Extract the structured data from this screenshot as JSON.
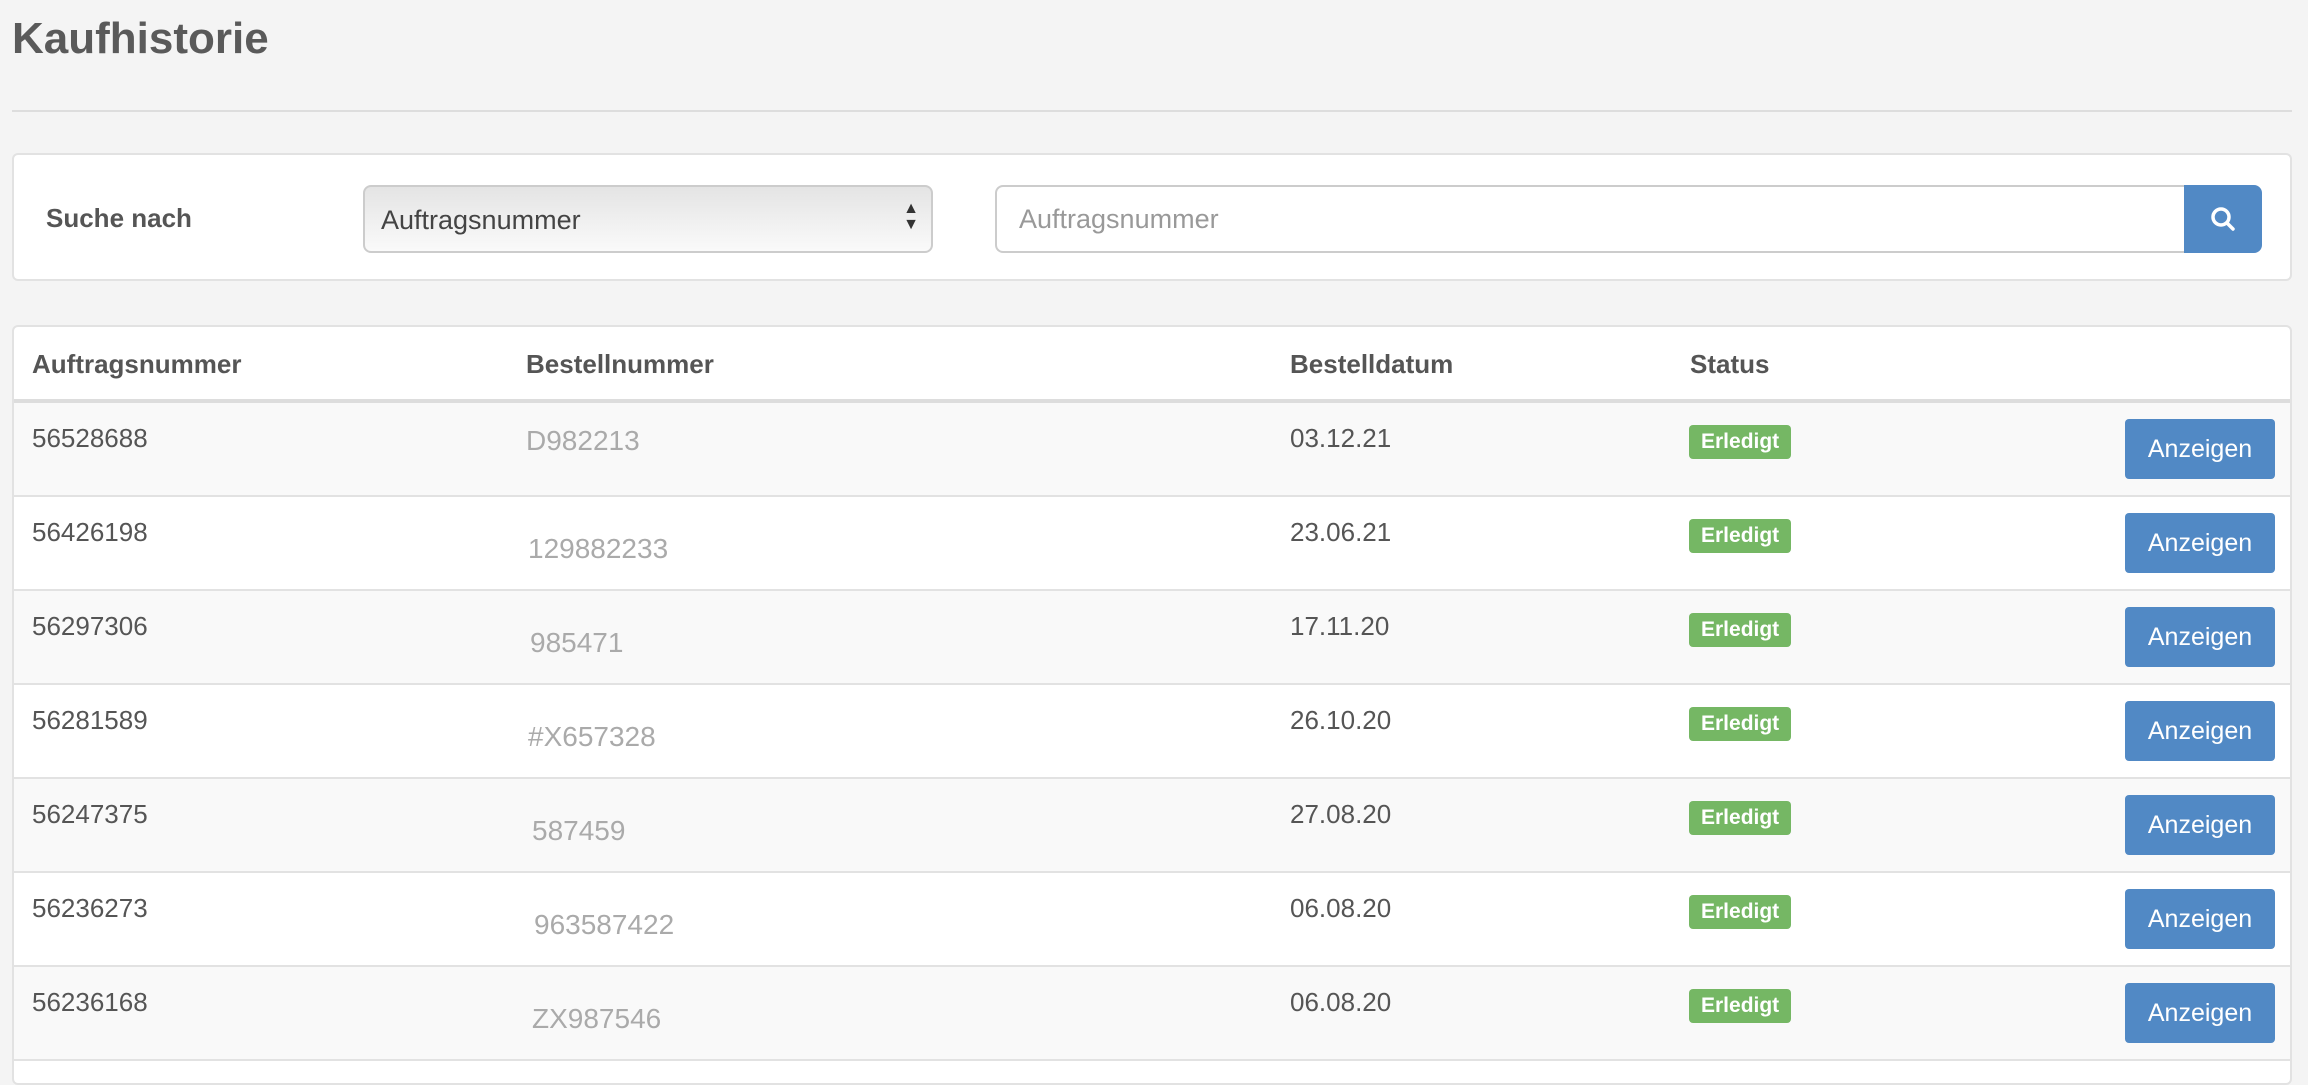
{
  "page_title": "Kaufhistorie",
  "search": {
    "label": "Suche nach",
    "select_value": "Auftragsnummer",
    "input_placeholder": "Auftragsnummer",
    "input_value": "",
    "button_icon": "search-icon"
  },
  "table": {
    "headers": [
      "Auftragsnummer",
      "Bestellnummer",
      "Bestelldatum",
      "Status",
      ""
    ],
    "rows": [
      {
        "auftrag": "56528688",
        "bestell": "D982213",
        "datum": "03.12.21",
        "status": "Erledigt",
        "action": "Anzeigen"
      },
      {
        "auftrag": "56426198",
        "bestell": "129882233",
        "datum": "23.06.21",
        "status": "Erledigt",
        "action": "Anzeigen"
      },
      {
        "auftrag": "56297306",
        "bestell": "985471",
        "datum": "17.11.20",
        "status": "Erledigt",
        "action": "Anzeigen"
      },
      {
        "auftrag": "56281589",
        "bestell": "#X657328",
        "datum": "26.10.20",
        "status": "Erledigt",
        "action": "Anzeigen"
      },
      {
        "auftrag": "56247375",
        "bestell": "587459",
        "datum": "27.08.20",
        "status": "Erledigt",
        "action": "Anzeigen"
      },
      {
        "auftrag": "56236273",
        "bestell": "963587422",
        "datum": "06.08.20",
        "status": "Erledigt",
        "action": "Anzeigen"
      },
      {
        "auftrag": "56236168",
        "bestell": "ZX987546",
        "datum": "06.08.20",
        "status": "Erledigt",
        "action": "Anzeigen"
      }
    ]
  },
  "colors": {
    "primary": "#5189c5",
    "success": "#75b764",
    "background": "#f4f4f4"
  }
}
